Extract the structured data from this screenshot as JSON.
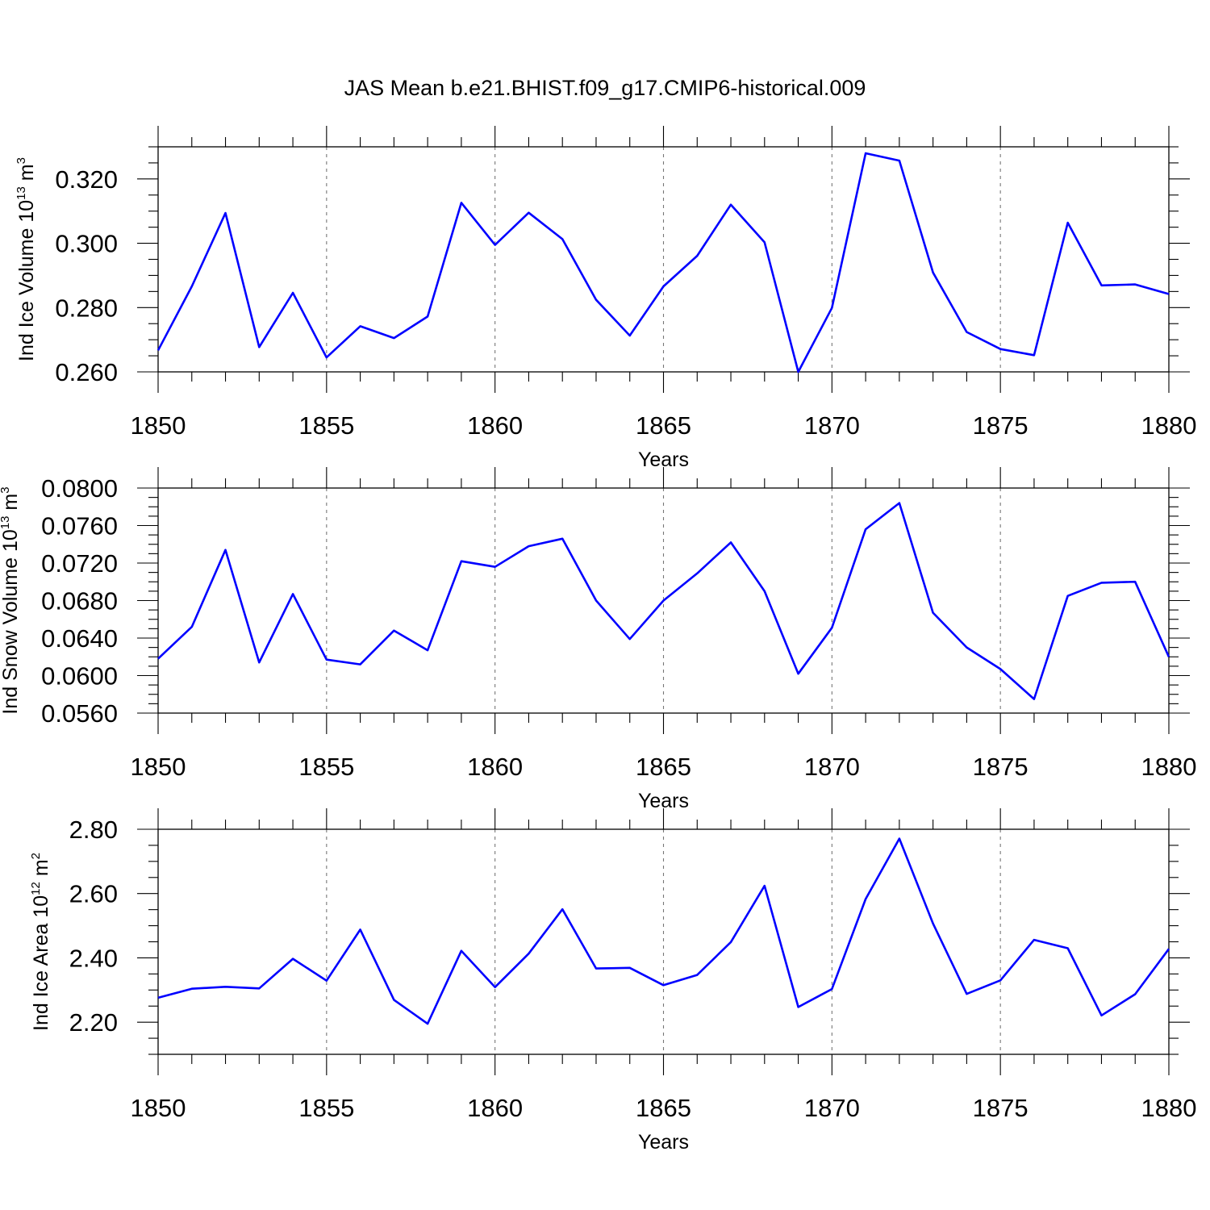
{
  "title": "JAS Mean b.e21.BHIST.f09_g17.CMIP6-historical.009",
  "chart_data": [
    {
      "type": "line",
      "title": "JAS Mean b.e21.BHIST.f09_g17.CMIP6-historical.009",
      "xlabel": "Years",
      "ylabel": "Ind Ice Volume 10",
      "ylabel_exp": "13",
      "ylabel_unit": " m",
      "ylabel_unit_exp": "3",
      "xlim": [
        1850,
        1880
      ],
      "ylim": [
        0.26,
        0.33
      ],
      "xticks": [
        "1850",
        "1855",
        "1860",
        "1865",
        "1870",
        "1875",
        "1880"
      ],
      "yticks": [
        "0.260",
        "0.280",
        "0.300",
        "0.320"
      ],
      "ytick_values": [
        0.26,
        0.28,
        0.3,
        0.32
      ],
      "y_minor_step": 0.005,
      "grid": "vertical dashed at major x ticks",
      "series": [
        {
          "name": "Ind Ice Volume",
          "color": "#0000ff",
          "x": [
            1850,
            1851,
            1852,
            1853,
            1854,
            1855,
            1856,
            1857,
            1858,
            1859,
            1860,
            1861,
            1862,
            1863,
            1864,
            1865,
            1866,
            1867,
            1868,
            1869,
            1870,
            1871,
            1872,
            1873,
            1874,
            1875,
            1876,
            1877,
            1878,
            1879,
            1880
          ],
          "values": [
            0.2667,
            0.2866,
            0.3094,
            0.2677,
            0.2846,
            0.2645,
            0.2742,
            0.2705,
            0.2772,
            0.3126,
            0.2995,
            0.3095,
            0.3013,
            0.2824,
            0.2713,
            0.2866,
            0.2961,
            0.312,
            0.3003,
            0.26,
            0.2799,
            0.328,
            0.3257,
            0.2909,
            0.2724,
            0.2671,
            0.2652,
            0.3064,
            0.2869,
            0.2872,
            0.2842
          ]
        }
      ]
    },
    {
      "type": "line",
      "title": "",
      "xlabel": "Years",
      "ylabel": "Ind Snow Volume 10",
      "ylabel_exp": "13",
      "ylabel_unit": " m",
      "ylabel_unit_exp": "3",
      "xlim": [
        1850,
        1880
      ],
      "ylim": [
        0.056,
        0.08
      ],
      "xticks": [
        "1850",
        "1855",
        "1860",
        "1865",
        "1870",
        "1875",
        "1880"
      ],
      "yticks": [
        "0.0560",
        "0.0600",
        "0.0640",
        "0.0680",
        "0.0720",
        "0.0760",
        "0.0800"
      ],
      "ytick_values": [
        0.056,
        0.06,
        0.064,
        0.068,
        0.072,
        0.076,
        0.08
      ],
      "y_minor_step": 0.001,
      "grid": "vertical dashed at major x ticks",
      "series": [
        {
          "name": "Ind Snow Volume",
          "color": "#0000ff",
          "x": [
            1850,
            1851,
            1852,
            1853,
            1854,
            1855,
            1856,
            1857,
            1858,
            1859,
            1860,
            1861,
            1862,
            1863,
            1864,
            1865,
            1866,
            1867,
            1868,
            1869,
            1870,
            1871,
            1872,
            1873,
            1874,
            1875,
            1876,
            1877,
            1878,
            1879,
            1880
          ],
          "values": [
            0.0618,
            0.0652,
            0.0734,
            0.0614,
            0.0687,
            0.0617,
            0.0612,
            0.0648,
            0.0627,
            0.0722,
            0.0716,
            0.0738,
            0.0746,
            0.068,
            0.0639,
            0.068,
            0.0709,
            0.0742,
            0.069,
            0.0602,
            0.0651,
            0.0756,
            0.0784,
            0.0667,
            0.063,
            0.0607,
            0.0575,
            0.0685,
            0.0699,
            0.07,
            0.062
          ]
        }
      ]
    },
    {
      "type": "line",
      "title": "",
      "xlabel": "Years",
      "ylabel": "Ind Ice Area 10",
      "ylabel_exp": "12",
      "ylabel_unit": " m",
      "ylabel_unit_exp": "2",
      "xlim": [
        1850,
        1880
      ],
      "ylim": [
        2.1,
        2.8
      ],
      "xticks": [
        "1850",
        "1855",
        "1860",
        "1865",
        "1870",
        "1875",
        "1880"
      ],
      "yticks": [
        "2.20",
        "2.40",
        "2.60",
        "2.80"
      ],
      "ytick_values": [
        2.2,
        2.4,
        2.6,
        2.8
      ],
      "y_minor_step": 0.05,
      "grid": "vertical dashed at major x ticks",
      "series": [
        {
          "name": "Ind Ice Area",
          "color": "#0000ff",
          "x": [
            1850,
            1851,
            1852,
            1853,
            1854,
            1855,
            1856,
            1857,
            1858,
            1859,
            1860,
            1861,
            1862,
            1863,
            1864,
            1865,
            1866,
            1867,
            1868,
            1869,
            1870,
            1871,
            1872,
            1873,
            1874,
            1875,
            1876,
            1877,
            1878,
            1879,
            1880
          ],
          "values": [
            2.276,
            2.304,
            2.31,
            2.305,
            2.397,
            2.329,
            2.488,
            2.269,
            2.195,
            2.422,
            2.309,
            2.413,
            2.551,
            2.367,
            2.369,
            2.315,
            2.347,
            2.449,
            2.624,
            2.247,
            2.303,
            2.583,
            2.771,
            2.507,
            2.288,
            2.33,
            2.456,
            2.43,
            2.221,
            2.287,
            2.428
          ]
        }
      ]
    }
  ]
}
